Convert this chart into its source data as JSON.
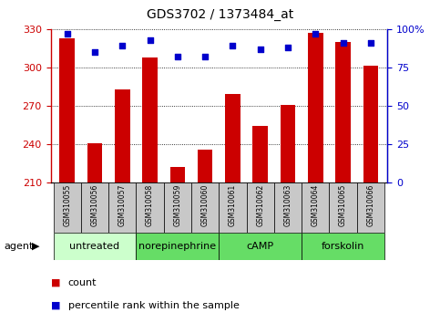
{
  "title": "GDS3702 / 1373484_at",
  "samples": [
    "GSM310055",
    "GSM310056",
    "GSM310057",
    "GSM310058",
    "GSM310059",
    "GSM310060",
    "GSM310061",
    "GSM310062",
    "GSM310063",
    "GSM310064",
    "GSM310065",
    "GSM310066"
  ],
  "counts": [
    323,
    241,
    283,
    308,
    222,
    236,
    279,
    254,
    271,
    327,
    320,
    301
  ],
  "percentile_ranks": [
    97,
    85,
    89,
    93,
    82,
    82,
    89,
    87,
    88,
    97,
    91,
    91
  ],
  "ylim_left": [
    210,
    330
  ],
  "ylim_right": [
    0,
    100
  ],
  "yticks_left": [
    210,
    240,
    270,
    300,
    330
  ],
  "yticks_right": [
    0,
    25,
    50,
    75,
    100
  ],
  "bar_color": "#cc0000",
  "dot_color": "#0000cc",
  "bg_color": "#ffffff",
  "groups": [
    {
      "label": "untreated",
      "start": 0,
      "end": 3,
      "color": "#ccffcc"
    },
    {
      "label": "norepinephrine",
      "start": 3,
      "end": 6,
      "color": "#66dd66"
    },
    {
      "label": "cAMP",
      "start": 6,
      "end": 9,
      "color": "#66dd66"
    },
    {
      "label": "forskolin",
      "start": 9,
      "end": 12,
      "color": "#66dd66"
    }
  ],
  "xlabel_agent": "agent",
  "legend_count_label": "count",
  "legend_pct_label": "percentile rank within the sample",
  "tick_fontsize": 8,
  "title_fontsize": 10,
  "sample_fontsize": 5.5,
  "group_fontsize": 8,
  "legend_fontsize": 8
}
